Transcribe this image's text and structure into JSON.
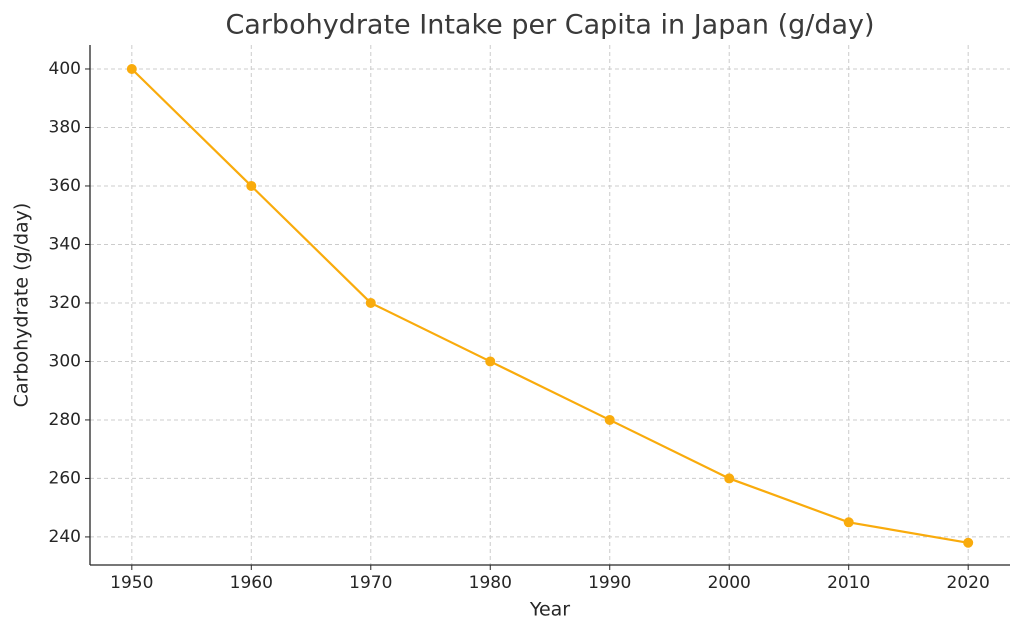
{
  "chart_data": {
    "type": "line",
    "title": "Carbohydrate Intake per Capita in Japan (g/day)",
    "x_label": "Year",
    "y_label": "Carbohydrate (g/day)",
    "x": [
      1950,
      1960,
      1970,
      1980,
      1990,
      2000,
      2010,
      2020
    ],
    "values": [
      400,
      360,
      320,
      300,
      280,
      260,
      245,
      238
    ],
    "color": "#f9ab0c",
    "xlim": [
      1946.5,
      2023.5
    ],
    "xticks": [
      1950,
      1960,
      1970,
      1980,
      1990,
      2000,
      2010,
      2020
    ],
    "ylim": [
      230.4,
      408.2
    ],
    "yticks": [
      240,
      260,
      280,
      300,
      320,
      340,
      360,
      380,
      400
    ],
    "grid": true
  }
}
